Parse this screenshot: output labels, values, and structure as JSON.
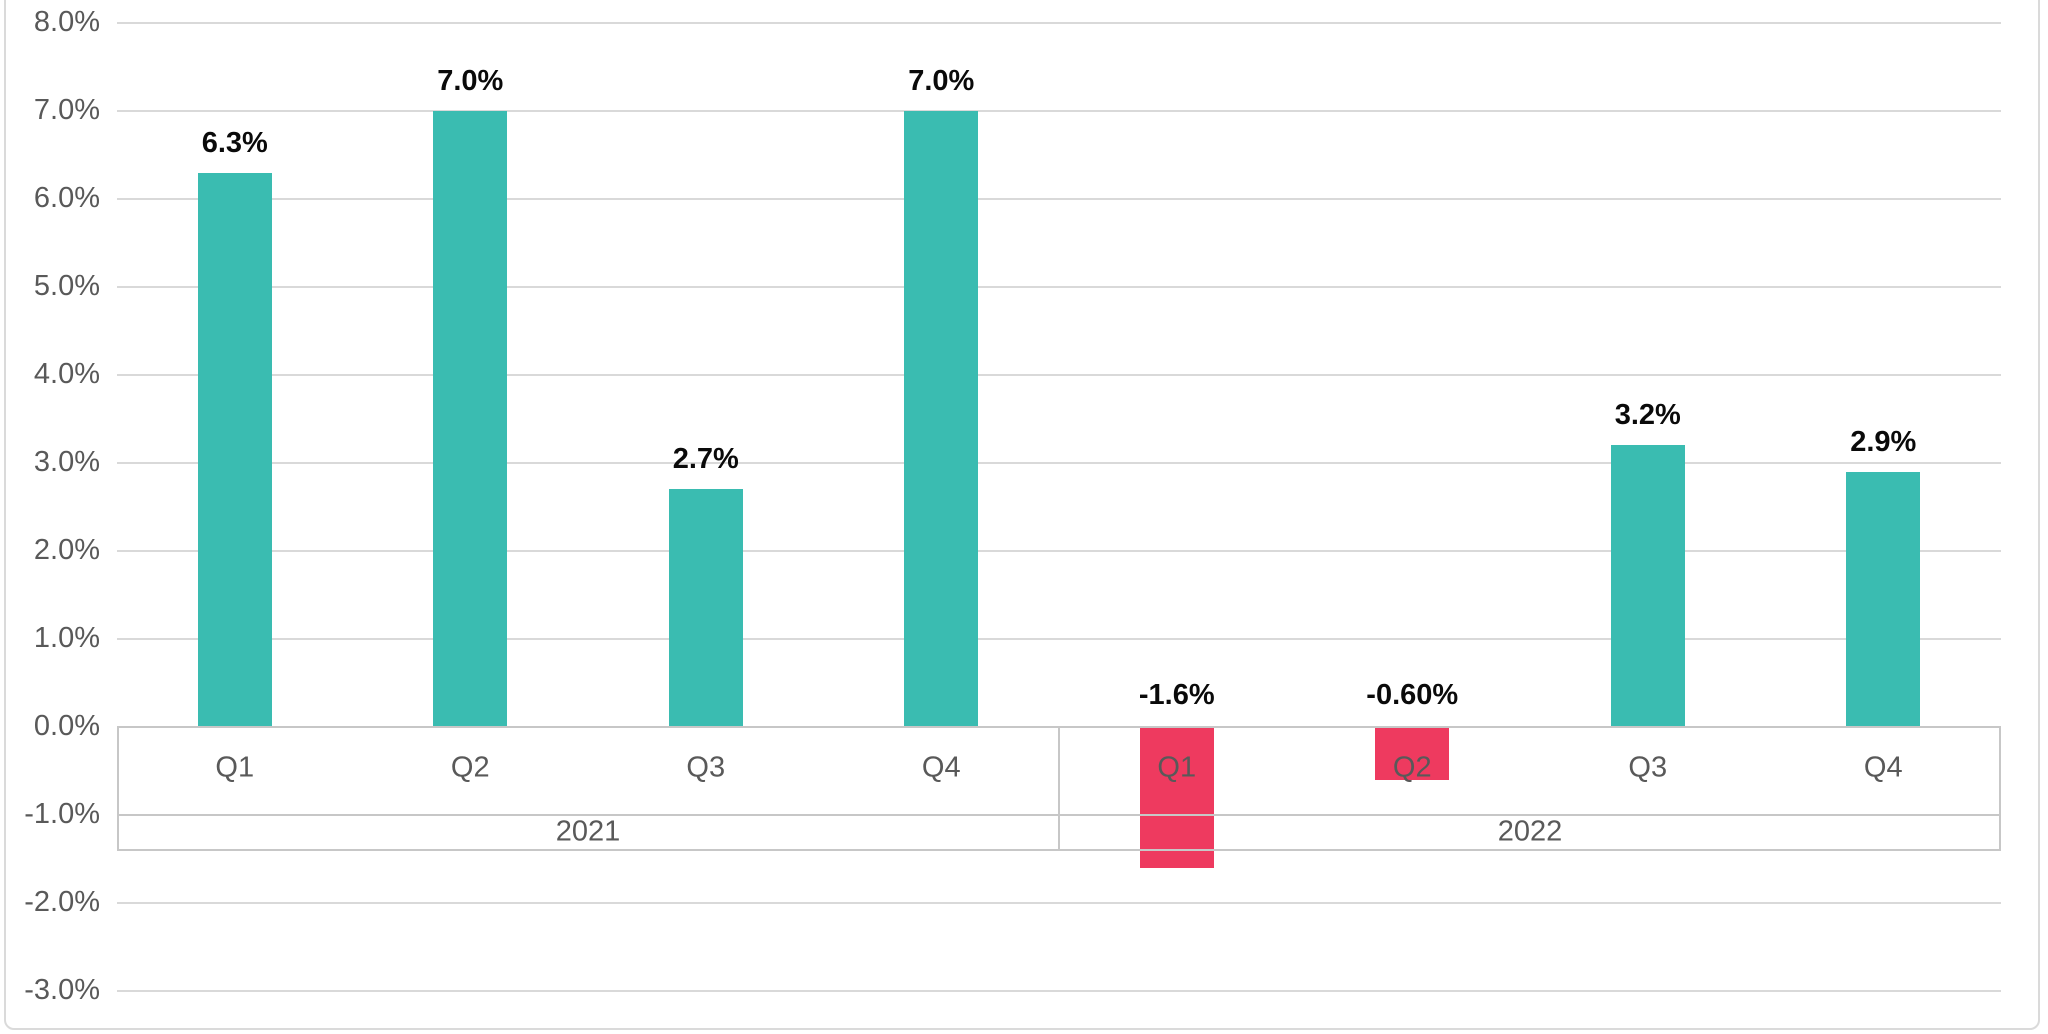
{
  "chart_data": {
    "type": "bar",
    "title": "",
    "legend": "none",
    "grid": true,
    "unit": "percent",
    "groups": [
      {
        "label": "2021",
        "categories": [
          "Q1",
          "Q2",
          "Q3",
          "Q4"
        ],
        "values": [
          6.3,
          7.0,
          2.7,
          7.0
        ],
        "data_labels": [
          "6.3%",
          "7.0%",
          "2.7%",
          "7.0%"
        ]
      },
      {
        "label": "2022",
        "categories": [
          "Q1",
          "Q2",
          "Q3",
          "Q4"
        ],
        "values": [
          -1.6,
          -0.6,
          3.2,
          2.9
        ],
        "data_labels": [
          "-1.6%",
          "-0.60%",
          "3.2%",
          "2.9%"
        ]
      }
    ],
    "y_axis": {
      "min": -3.0,
      "max": 8.0,
      "step": 1.0,
      "tick_labels": [
        "8.0%",
        "7.0%",
        "6.0%",
        "5.0%",
        "4.0%",
        "3.0%",
        "2.0%",
        "1.0%",
        "0.0%",
        "-1.0%",
        "-2.0%",
        "-3.0%"
      ]
    },
    "colors": {
      "positive_bar": "#3ABCB1",
      "negative_bar": "#EE3A5F",
      "gridline": "#D9D9D9",
      "axis_line": "#C7C7C7",
      "tick_text": "#595959",
      "category_text": "#595959",
      "data_label_text": "#0A0A0A",
      "frame_border": "#DADADA",
      "background": "#FFFFFF"
    }
  }
}
